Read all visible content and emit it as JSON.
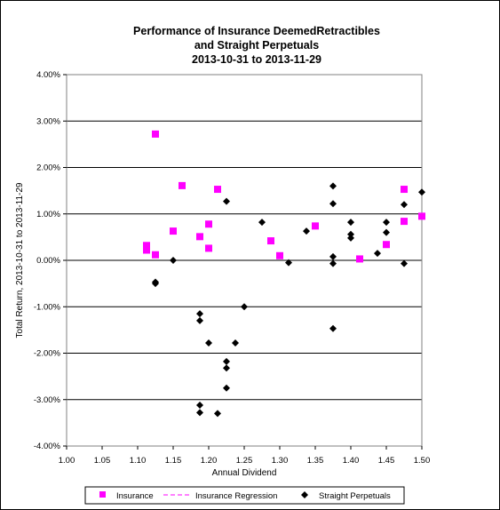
{
  "chart_data": {
    "type": "scatter",
    "title_lines": [
      "Performance of Insurance DeemedRetractibles",
      "and Straight Perpetuals",
      "2013-10-31 to 2013-11-29"
    ],
    "xlabel": "Annual Dividend",
    "ylabel": "Total Return, 2013-10-31 to 2013-11-29",
    "xlim": [
      1.0,
      1.5
    ],
    "ylim": [
      -0.04,
      0.04
    ],
    "x_ticks": [
      1.0,
      1.05,
      1.1,
      1.15,
      1.2,
      1.25,
      1.3,
      1.35,
      1.4,
      1.45,
      1.5
    ],
    "x_tick_labels": [
      "1.00",
      "1.05",
      "1.10",
      "1.15",
      "1.20",
      "1.25",
      "1.30",
      "1.35",
      "1.40",
      "1.45",
      "1.50"
    ],
    "y_ticks": [
      -0.04,
      -0.03,
      -0.02,
      -0.01,
      0.0,
      0.01,
      0.02,
      0.03,
      0.04
    ],
    "y_tick_labels": [
      "-4.00%",
      "-3.00%",
      "-2.00%",
      "-1.00%",
      "0.00%",
      "1.00%",
      "2.00%",
      "3.00%",
      "4.00%"
    ],
    "grid": "horizontal major lines",
    "legend_position": "bottom",
    "series": [
      {
        "name": "Insurance",
        "marker": "square",
        "color": "#ff00ff",
        "points": [
          [
            1.1125,
            0.0032
          ],
          [
            1.1125,
            0.0022
          ],
          [
            1.125,
            0.0272
          ],
          [
            1.125,
            0.0012
          ],
          [
            1.15,
            0.0063
          ],
          [
            1.1625,
            0.0161
          ],
          [
            1.1875,
            0.0051
          ],
          [
            1.2,
            0.0078
          ],
          [
            1.2,
            0.0026
          ],
          [
            1.2125,
            0.0153
          ],
          [
            1.2875,
            0.0042
          ],
          [
            1.3,
            0.001
          ],
          [
            1.35,
            0.0074
          ],
          [
            1.4125,
            0.0003
          ],
          [
            1.45,
            0.0034
          ],
          [
            1.475,
            0.0153
          ],
          [
            1.475,
            0.0084
          ],
          [
            1.5,
            0.0095
          ]
        ]
      },
      {
        "name": "Insurance Regression",
        "marker": "dashed-line",
        "color": "#ff00ff",
        "points": []
      },
      {
        "name": "Straight Perpetuals",
        "marker": "diamond",
        "color": "#000000",
        "points": [
          [
            1.125,
            -0.0047
          ],
          [
            1.125,
            -0.005
          ],
          [
            1.15,
            0.0
          ],
          [
            1.1875,
            -0.0115
          ],
          [
            1.1875,
            -0.013
          ],
          [
            1.1875,
            -0.0312
          ],
          [
            1.1875,
            -0.0328
          ],
          [
            1.2,
            -0.0178
          ],
          [
            1.2125,
            -0.033
          ],
          [
            1.225,
            0.0127
          ],
          [
            1.225,
            -0.0218
          ],
          [
            1.225,
            -0.0232
          ],
          [
            1.225,
            -0.0275
          ],
          [
            1.2375,
            -0.0178
          ],
          [
            1.25,
            -0.01
          ],
          [
            1.275,
            0.0082
          ],
          [
            1.3125,
            -0.0005
          ],
          [
            1.3375,
            0.0063
          ],
          [
            1.375,
            0.016
          ],
          [
            1.375,
            0.0122
          ],
          [
            1.375,
            0.0008
          ],
          [
            1.375,
            -0.0007
          ],
          [
            1.375,
            -0.0147
          ],
          [
            1.4,
            0.0082
          ],
          [
            1.4,
            0.0056
          ],
          [
            1.4,
            0.0048
          ],
          [
            1.4375,
            0.0015
          ],
          [
            1.45,
            0.0082
          ],
          [
            1.45,
            0.006
          ],
          [
            1.475,
            0.012
          ],
          [
            1.475,
            -0.0007
          ],
          [
            1.5,
            0.0147
          ]
        ]
      }
    ]
  }
}
